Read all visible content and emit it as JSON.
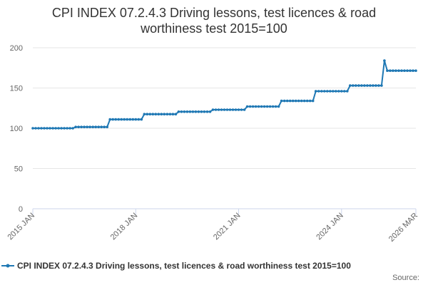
{
  "chart_data": {
    "type": "line",
    "title": "CPI INDEX 07.2.4.3 Driving lessons, test licences & road worthiness test 2015=100",
    "title_lines": [
      "CPI INDEX 07.2.4.3 Driving lessons, test licences & road",
      "worthiness test 2015=100"
    ],
    "xlabel": "",
    "ylabel": "",
    "ylim": [
      0,
      200
    ],
    "y_ticks": [
      0,
      50,
      100,
      150,
      200
    ],
    "x_start": "2015-01",
    "x_end": "2026-03",
    "x_ticks": [
      {
        "label": "2015 JAN",
        "month": "2015-01"
      },
      {
        "label": "2018 JAN",
        "month": "2018-01"
      },
      {
        "label": "2021 JAN",
        "month": "2021-01"
      },
      {
        "label": "2024 JAN",
        "month": "2024-01"
      },
      {
        "label": "2026 MAR",
        "month": "2026-03"
      }
    ],
    "grid": true,
    "legend_position": "bottom",
    "series": [
      {
        "name": "CPI INDEX 07.2.4.3 Driving lessons, test licences & road worthiness test 2015=100",
        "color": "#1f78b4",
        "segments": [
          {
            "from": "2015-01",
            "to": "2016-03",
            "value": 100.0
          },
          {
            "from": "2016-04",
            "to": "2017-03",
            "value": 101.6
          },
          {
            "from": "2017-04",
            "to": "2018-03",
            "value": 111.0
          },
          {
            "from": "2018-04",
            "to": "2019-03",
            "value": 117.5
          },
          {
            "from": "2019-04",
            "to": "2020-03",
            "value": 120.5
          },
          {
            "from": "2020-04",
            "to": "2021-03",
            "value": 123.0
          },
          {
            "from": "2021-04",
            "to": "2022-03",
            "value": 127.0
          },
          {
            "from": "2022-04",
            "to": "2023-03",
            "value": 134.0
          },
          {
            "from": "2023-04",
            "to": "2024-03",
            "value": 146.0
          },
          {
            "from": "2024-04",
            "to": "2025-03",
            "value": 153.0
          },
          {
            "from": "2025-04",
            "to": "2025-04",
            "value": 184.0
          },
          {
            "from": "2025-05",
            "to": "2026-03",
            "value": 171.5
          }
        ]
      }
    ]
  },
  "source_label": "Source:"
}
